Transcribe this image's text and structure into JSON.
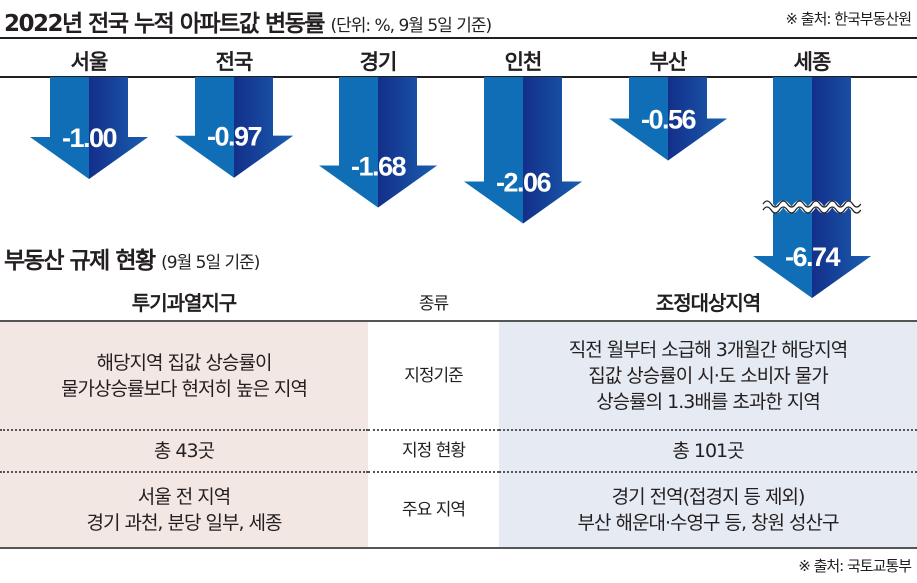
{
  "title": "2022년 전국 누적 아파트값 변동률",
  "subtitle": "(단위: %, 9월 5일 기준)",
  "source_top": "※ 출처: 한국부동산원",
  "chart_data": {
    "type": "bar",
    "title": "2022년 전국 누적 아파트값 변동률",
    "unit": "%",
    "categories": [
      "서울",
      "전국",
      "경기",
      "인천",
      "부산",
      "세종"
    ],
    "values": [
      -1.0,
      -0.97,
      -1.68,
      -2.06,
      -0.56,
      -6.74
    ],
    "labels": [
      "-1.00",
      "-0.97",
      "-1.68",
      "-2.06",
      "-0.56",
      "-6.74"
    ],
    "axis_break_on": "세종",
    "colors": {
      "arrow": "#0f6eb5",
      "arrow_dark": "#132f8a"
    }
  },
  "section2": {
    "title": "부동산 규제 현황",
    "subtitle": "(9월 5일 기준)"
  },
  "table": {
    "headers": [
      "투기과열지구",
      "종류",
      "조정대상지역"
    ],
    "rows": [
      {
        "left": [
          "해당지역 집값 상승률이",
          "물가상승률보다 현저히 높은 지역"
        ],
        "mid": "지정기준",
        "right": [
          "직전 월부터 소급해 3개월간 해당지역",
          "집값 상승률이 시·도 소비자 물가",
          "상승률의 1.3배를 초과한 지역"
        ]
      },
      {
        "left": [
          "총 43곳"
        ],
        "mid": "지정 현황",
        "right": [
          "총 101곳"
        ]
      },
      {
        "left": [
          "서울 전 지역",
          "경기 과천, 분당 일부, 세종"
        ],
        "mid": "주요 지역",
        "right": [
          "경기 전역(접경지 등 제외)",
          "부산 해운대·수영구 등, 창원 성산구"
        ]
      }
    ]
  },
  "source_bottom": "※ 출처: 국토교통부"
}
